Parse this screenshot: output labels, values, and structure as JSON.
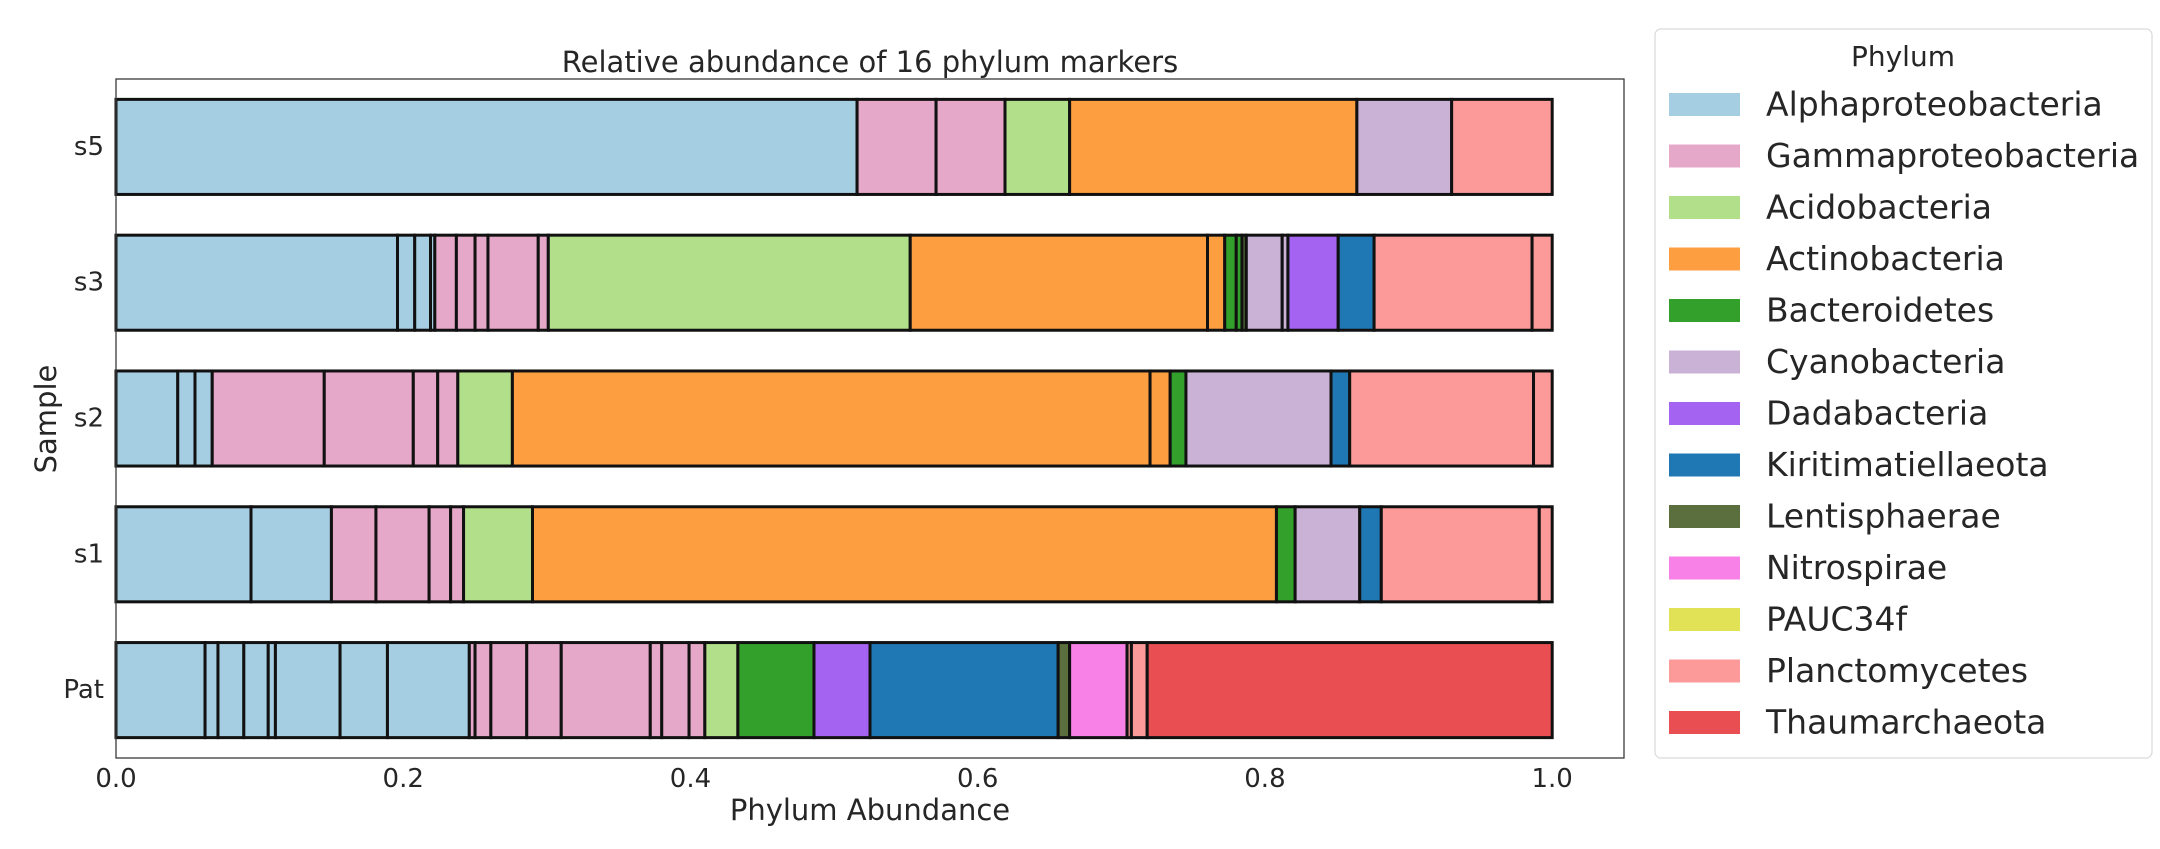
{
  "chart_data": {
    "type": "bar",
    "orientation": "horizontal",
    "stacked": true,
    "title": "Relative abundance of 16 phylum markers",
    "xlabel": "Phylum Abundance",
    "ylabel": "Sample",
    "xlim": [
      0.0,
      1.05
    ],
    "xticks": [
      {
        "value": 0.0,
        "label": "0.0"
      },
      {
        "value": 0.2,
        "label": "0.2"
      },
      {
        "value": 0.4,
        "label": "0.4"
      },
      {
        "value": 0.6,
        "label": "0.6"
      },
      {
        "value": 0.8,
        "label": "0.8"
      },
      {
        "value": 1.0,
        "label": "1.0"
      }
    ],
    "grid": false,
    "legend": {
      "title": "Phylum",
      "placement": "outside-right",
      "entries": [
        {
          "label": "Alphaproteobacteria",
          "color": "#a6cee3"
        },
        {
          "label": "Gammaproteobacteria",
          "color": "#e5a8c8"
        },
        {
          "label": "Acidobacteria",
          "color": "#b2df8a"
        },
        {
          "label": "Actinobacteria",
          "color": "#fd9e40"
        },
        {
          "label": "Bacteroidetes",
          "color": "#33a02c"
        },
        {
          "label": "Cyanobacteria",
          "color": "#cab2d6"
        },
        {
          "label": "Dadabacteria",
          "color": "#a463f0"
        },
        {
          "label": "Kiritimatiellaeota",
          "color": "#1f78b4"
        },
        {
          "label": "Lentisphaerae",
          "color": "#5b6e3e"
        },
        {
          "label": "Nitrospirae",
          "color": "#f781e6"
        },
        {
          "label": "PAUC34f",
          "color": "#e2e256"
        },
        {
          "label": "Planctomycetes",
          "color": "#fb9a99"
        },
        {
          "label": "Thaumarchaeota",
          "color": "#e94f52"
        }
      ]
    },
    "categories": [
      "s5",
      "s3",
      "s2",
      "s1",
      "Pat"
    ],
    "samples": [
      {
        "name": "s5",
        "segments": [
          {
            "phylum": "Alphaproteobacteria",
            "value": 0.516
          },
          {
            "phylum": "Gammaproteobacteria",
            "value": 0.055
          },
          {
            "phylum": "Gammaproteobacteria",
            "value": 0.048
          },
          {
            "phylum": "Acidobacteria",
            "value": 0.045
          },
          {
            "phylum": "Actinobacteria",
            "value": 0.2
          },
          {
            "phylum": "Cyanobacteria",
            "value": 0.066
          },
          {
            "phylum": "Planctomycetes",
            "value": 0.07
          }
        ]
      },
      {
        "name": "s3",
        "segments": [
          {
            "phylum": "Alphaproteobacteria",
            "value": 0.196
          },
          {
            "phylum": "Alphaproteobacteria",
            "value": 0.012
          },
          {
            "phylum": "Alphaproteobacteria",
            "value": 0.011
          },
          {
            "phylum": "Alphaproteobacteria",
            "value": 0.003
          },
          {
            "phylum": "Gammaproteobacteria",
            "value": 0.015
          },
          {
            "phylum": "Gammaproteobacteria",
            "value": 0.013
          },
          {
            "phylum": "Gammaproteobacteria",
            "value": 0.009
          },
          {
            "phylum": "Gammaproteobacteria",
            "value": 0.035
          },
          {
            "phylum": "Gammaproteobacteria",
            "value": 0.007
          },
          {
            "phylum": "Acidobacteria",
            "value": 0.252
          },
          {
            "phylum": "Actinobacteria",
            "value": 0.207
          },
          {
            "phylum": "Actinobacteria",
            "value": 0.012
          },
          {
            "phylum": "Bacteroidetes",
            "value": 0.008
          },
          {
            "phylum": "Bacteroidetes",
            "value": 0.004
          },
          {
            "phylum": "Lentisphaerae",
            "value": 0.003
          },
          {
            "phylum": "Cyanobacteria",
            "value": 0.025
          },
          {
            "phylum": "Cyanobacteria",
            "value": 0.004
          },
          {
            "phylum": "Dadabacteria",
            "value": 0.035
          },
          {
            "phylum": "Kiritimatiellaeota",
            "value": 0.025
          },
          {
            "phylum": "Planctomycetes",
            "value": 0.11
          },
          {
            "phylum": "Planctomycetes",
            "value": 0.014
          }
        ]
      },
      {
        "name": "s2",
        "segments": [
          {
            "phylum": "Alphaproteobacteria",
            "value": 0.043
          },
          {
            "phylum": "Alphaproteobacteria",
            "value": 0.012
          },
          {
            "phylum": "Alphaproteobacteria",
            "value": 0.012
          },
          {
            "phylum": "Gammaproteobacteria",
            "value": 0.078
          },
          {
            "phylum": "Gammaproteobacteria",
            "value": 0.062
          },
          {
            "phylum": "Gammaproteobacteria",
            "value": 0.017
          },
          {
            "phylum": "Gammaproteobacteria",
            "value": 0.014
          },
          {
            "phylum": "Acidobacteria",
            "value": 0.038
          },
          {
            "phylum": "Actinobacteria",
            "value": 0.444
          },
          {
            "phylum": "Actinobacteria",
            "value": 0.014
          },
          {
            "phylum": "Bacteroidetes",
            "value": 0.011
          },
          {
            "phylum": "Cyanobacteria",
            "value": 0.101
          },
          {
            "phylum": "Kiritimatiellaeota",
            "value": 0.013
          },
          {
            "phylum": "Planctomycetes",
            "value": 0.128
          },
          {
            "phylum": "Planctomycetes",
            "value": 0.013
          }
        ]
      },
      {
        "name": "s1",
        "segments": [
          {
            "phylum": "Alphaproteobacteria",
            "value": 0.094
          },
          {
            "phylum": "Alphaproteobacteria",
            "value": 0.056
          },
          {
            "phylum": "Gammaproteobacteria",
            "value": 0.031
          },
          {
            "phylum": "Gammaproteobacteria",
            "value": 0.037
          },
          {
            "phylum": "Gammaproteobacteria",
            "value": 0.015
          },
          {
            "phylum": "Gammaproteobacteria",
            "value": 0.009
          },
          {
            "phylum": "Acidobacteria",
            "value": 0.048
          },
          {
            "phylum": "Actinobacteria",
            "value": 0.518
          },
          {
            "phylum": "Bacteroidetes",
            "value": 0.013
          },
          {
            "phylum": "Cyanobacteria",
            "value": 0.045
          },
          {
            "phylum": "Kiritimatiellaeota",
            "value": 0.015
          },
          {
            "phylum": "Planctomycetes",
            "value": 0.11
          },
          {
            "phylum": "Planctomycetes",
            "value": 0.009
          }
        ]
      },
      {
        "name": "Pat",
        "segments": [
          {
            "phylum": "Alphaproteobacteria",
            "value": 0.062
          },
          {
            "phylum": "Alphaproteobacteria",
            "value": 0.009
          },
          {
            "phylum": "Alphaproteobacteria",
            "value": 0.018
          },
          {
            "phylum": "Alphaproteobacteria",
            "value": 0.017
          },
          {
            "phylum": "Alphaproteobacteria",
            "value": 0.005
          },
          {
            "phylum": "Alphaproteobacteria",
            "value": 0.045
          },
          {
            "phylum": "Alphaproteobacteria",
            "value": 0.033
          },
          {
            "phylum": "Alphaproteobacteria",
            "value": 0.057
          },
          {
            "phylum": "Gammaproteobacteria",
            "value": 0.004
          },
          {
            "phylum": "Gammaproteobacteria",
            "value": 0.011
          },
          {
            "phylum": "Gammaproteobacteria",
            "value": 0.025
          },
          {
            "phylum": "Gammaproteobacteria",
            "value": 0.024
          },
          {
            "phylum": "Gammaproteobacteria",
            "value": 0.062
          },
          {
            "phylum": "Gammaproteobacteria",
            "value": 0.008
          },
          {
            "phylum": "Gammaproteobacteria",
            "value": 0.019
          },
          {
            "phylum": "Gammaproteobacteria",
            "value": 0.011
          },
          {
            "phylum": "Acidobacteria",
            "value": 0.023
          },
          {
            "phylum": "Bacteroidetes",
            "value": 0.053
          },
          {
            "phylum": "Dadabacteria",
            "value": 0.039
          },
          {
            "phylum": "Kiritimatiellaeota",
            "value": 0.131
          },
          {
            "phylum": "Lentisphaerae",
            "value": 0.008
          },
          {
            "phylum": "Nitrospirae",
            "value": 0.04
          },
          {
            "phylum": "Planctomycetes",
            "value": 0.003
          },
          {
            "phylum": "Planctomycetes",
            "value": 0.011
          },
          {
            "phylum": "Thaumarchaeota",
            "value": 0.282
          }
        ]
      }
    ]
  }
}
